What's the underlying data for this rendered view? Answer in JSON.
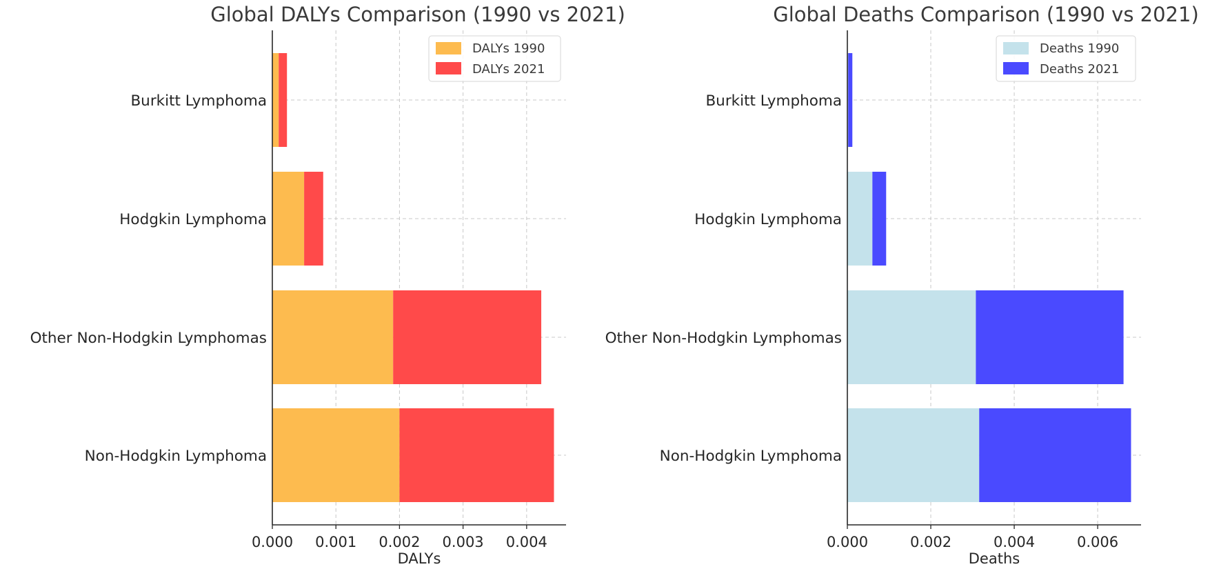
{
  "colors": {
    "dalys_1990": "#fdbb4f",
    "dalys_2021": "#ff4a4a",
    "deaths_1990": "#c4e2eb",
    "deaths_2021": "#4a4aff"
  },
  "chart_data": [
    {
      "type": "bar",
      "orientation": "horizontal",
      "stacked": true,
      "title": "Global DALYs Comparison (1990 vs 2021)",
      "xlabel": "DALYs",
      "ylabel": "",
      "categories": [
        "Non-Hodgkin Lymphoma",
        "Other Non-Hodgkin Lymphomas",
        "Hodgkin Lymphoma",
        "Burkitt Lymphoma"
      ],
      "series": [
        {
          "name": "DALYs 1990",
          "values": [
            0.002,
            0.0019,
            0.0005,
            0.0001
          ],
          "color": "#fdbb4f"
        },
        {
          "name": "DALYs 2021",
          "values": [
            0.00243,
            0.00233,
            0.0003,
            0.00013
          ],
          "color": "#ff4a4a"
        }
      ],
      "xlim": [
        0,
        0.00462
      ],
      "xticks": [
        0.0,
        0.001,
        0.002,
        0.003,
        0.004
      ],
      "xtick_labels": [
        "0.000",
        "0.001",
        "0.002",
        "0.003",
        "0.004"
      ],
      "grid": true,
      "legend_position": "top-right"
    },
    {
      "type": "bar",
      "orientation": "horizontal",
      "stacked": true,
      "title": "Global Deaths Comparison (1990 vs 2021)",
      "xlabel": "Deaths",
      "ylabel": "",
      "categories": [
        "Non-Hodgkin Lymphoma",
        "Other Non-Hodgkin Lymphomas",
        "Hodgkin Lymphoma",
        "Burkitt Lymphoma"
      ],
      "series": [
        {
          "name": "Deaths 1990",
          "values": [
            0.00316,
            0.00308,
            0.0006,
            2e-05
          ],
          "color": "#c4e2eb"
        },
        {
          "name": "Deaths 2021",
          "values": [
            0.00364,
            0.00354,
            0.00033,
            0.0001
          ],
          "color": "#4a4aff"
        }
      ],
      "xlim": [
        0,
        0.00704
      ],
      "xticks": [
        0.0,
        0.002,
        0.004,
        0.006
      ],
      "xtick_labels": [
        "0.000",
        "0.002",
        "0.004",
        "0.006"
      ],
      "grid": true,
      "legend_position": "top-right"
    }
  ]
}
